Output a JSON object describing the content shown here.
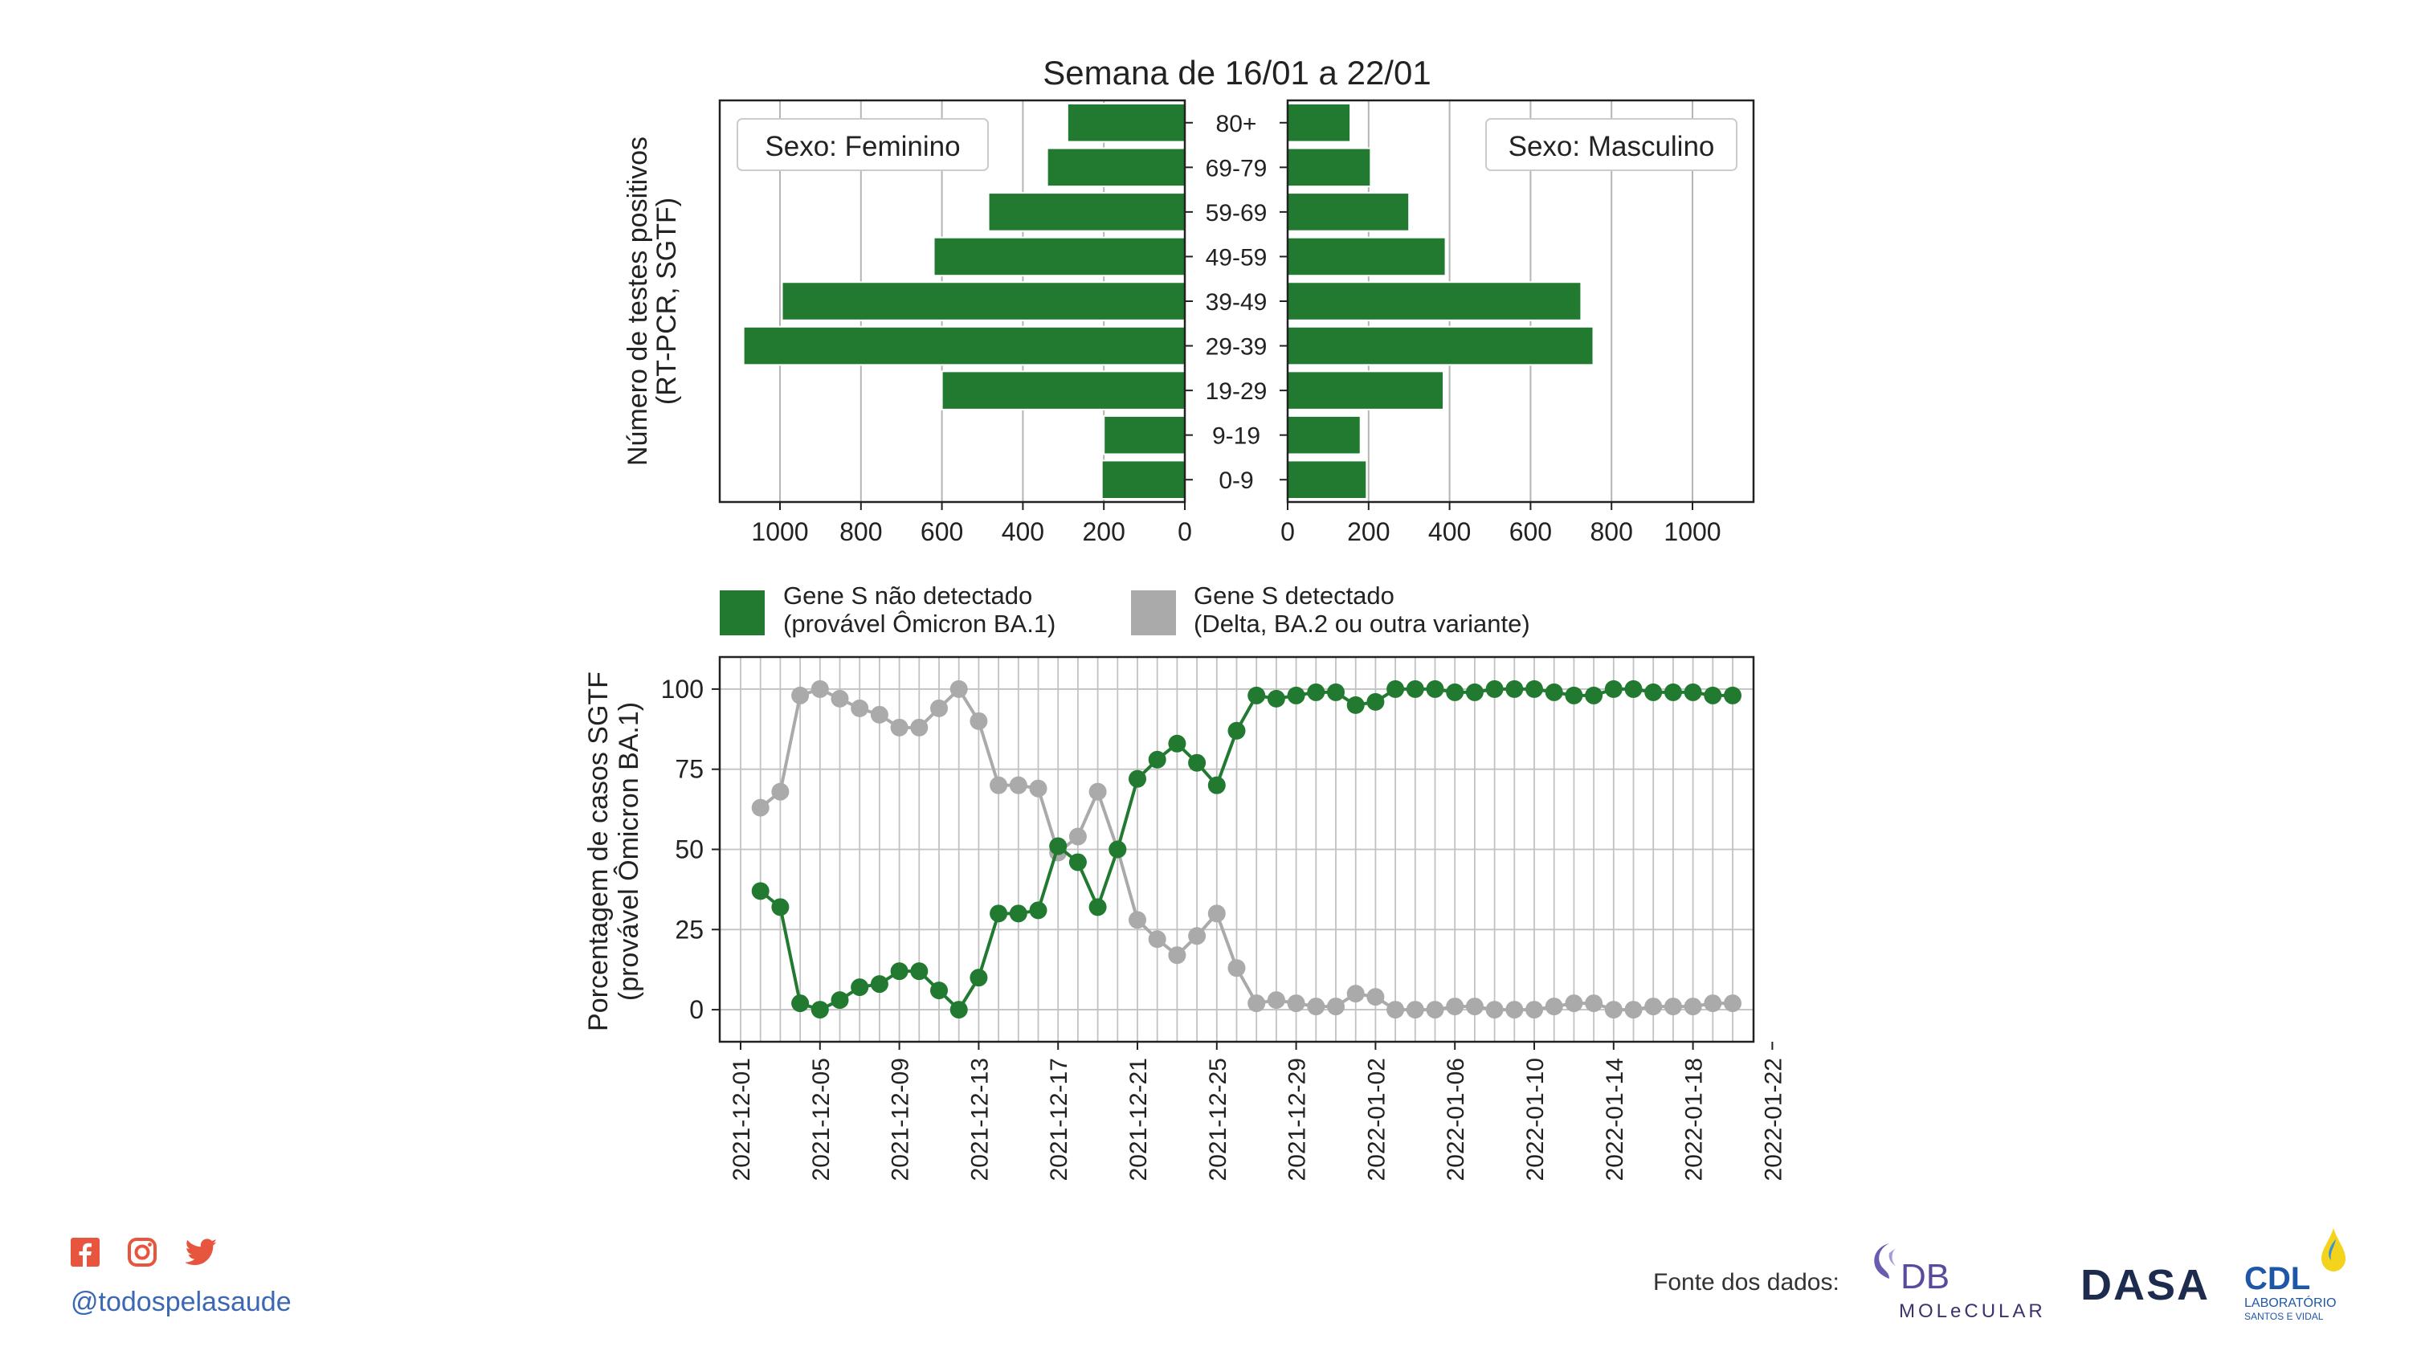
{
  "chart_data": [
    {
      "type": "bar",
      "orientation": "horizontal-pyramid",
      "title": "Semana de 16/01 a 22/01",
      "ylabel": "Número de testes positivos\n(RT-PCR, SGTF)",
      "categories": [
        "80+",
        "69-79",
        "59-69",
        "49-59",
        "39-49",
        "29-39",
        "19-29",
        "9-19",
        "0-9"
      ],
      "series": [
        {
          "name": "Sexo: Feminino",
          "values": [
            290,
            340,
            485,
            620,
            995,
            1090,
            600,
            200,
            205
          ]
        },
        {
          "name": "Sexo: Masculino",
          "values": [
            155,
            205,
            300,
            390,
            725,
            755,
            385,
            180,
            195
          ]
        }
      ],
      "xlim": [
        0,
        1150
      ],
      "xticks": [
        "1000",
        "800",
        "600",
        "400",
        "200",
        "0"
      ],
      "xticks_right": [
        "0",
        "200",
        "400",
        "600",
        "800",
        "1000"
      ],
      "grid": "x",
      "color": "#217a30"
    },
    {
      "type": "line",
      "ylabel": "Porcentagem de casos SGTF\n(provável Ômicron BA.1)",
      "ylim": [
        -10,
        110
      ],
      "yticks": [
        "0",
        "25",
        "50",
        "75",
        "100"
      ],
      "xticks": [
        "2021-12-01",
        "2021-12-05",
        "2021-12-09",
        "2021-12-13",
        "2021-12-17",
        "2021-12-21",
        "2021-12-25",
        "2021-12-29",
        "2022-01-02",
        "2022-01-06",
        "2022-01-10",
        "2022-01-14",
        "2022-01-18",
        "2022-01-22"
      ],
      "x_start": "2021-12-02",
      "x_end": "2022-01-22",
      "grid": true,
      "legend": "top-left",
      "series": [
        {
          "name": "Gene S não detectado\n(provável Ômicron BA.1)",
          "color": "#217a30",
          "values": [
            37,
            32,
            2,
            0,
            3,
            7,
            8,
            12,
            12,
            6,
            0,
            10,
            30,
            30,
            31,
            51,
            46,
            32,
            50,
            72,
            78,
            83,
            77,
            70,
            87,
            98,
            97,
            98,
            99,
            99,
            95,
            96,
            100,
            100,
            100,
            99,
            99,
            100,
            100,
            100,
            99,
            98,
            98,
            100,
            100,
            99,
            99,
            99,
            98,
            98
          ]
        },
        {
          "name": "Gene S detectado\n(Delta, BA.2 ou outra variante)",
          "color": "#aaaaaa",
          "values": [
            63,
            68,
            98,
            100,
            97,
            94,
            92,
            88,
            88,
            94,
            100,
            90,
            70,
            70,
            69,
            49,
            54,
            68,
            50,
            28,
            22,
            17,
            23,
            30,
            13,
            2,
            3,
            2,
            1,
            1,
            5,
            4,
            0,
            0,
            0,
            1,
            1,
            0,
            0,
            0,
            1,
            2,
            2,
            0,
            0,
            1,
            1,
            1,
            2,
            2
          ]
        }
      ]
    }
  ],
  "footer": {
    "handle": "@todospelasaude",
    "source_label": "Fonte dos dados:",
    "social_icons": [
      "facebook-icon",
      "instagram-icon",
      "twitter-icon"
    ],
    "social_color": "#e8553e",
    "logos": [
      {
        "name": "db-molecular-logo",
        "line1": "DB",
        "line2": "MOLeCULAR",
        "color": "#5b4a9b"
      },
      {
        "name": "dasa-logo",
        "text": "DASA",
        "color": "#1d2b4f"
      },
      {
        "name": "cdl-logo",
        "line1": "CDL",
        "line2": "LABORATÓRIO",
        "line3": "SANTOS E VIDAL",
        "color": "#1e57a8"
      }
    ]
  }
}
